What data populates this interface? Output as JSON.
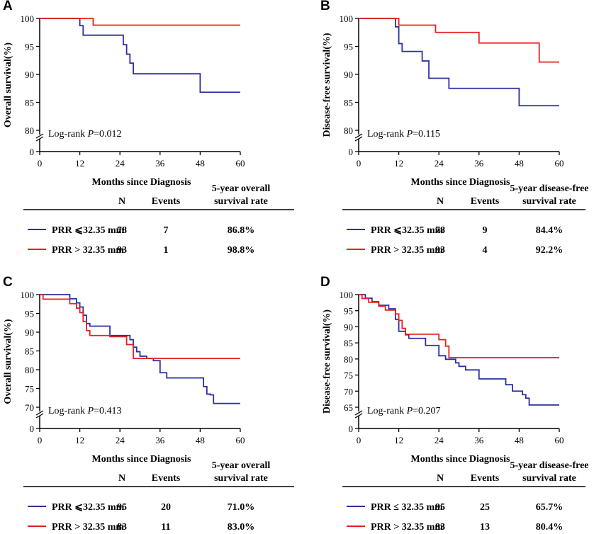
{
  "colors": {
    "blue": "#2b2fa3",
    "red": "#e8201e",
    "black": "#000000"
  },
  "xlabel": "Months since Diagnosis",
  "table_headers": {
    "n": "N",
    "events": "Events",
    "os_rate_line1": "5-year overall",
    "os_rate_line2": "survival rate",
    "dfs_rate_line1": "5-year disease-free",
    "dfs_rate_line2": "survival rate"
  },
  "chart_data": [
    {
      "panel": "A",
      "type": "line",
      "step": true,
      "ylabel": "Overall survival(%)",
      "xlabel": "Months since Diagnosis",
      "xticks": [
        0,
        12,
        24,
        36,
        48,
        60
      ],
      "yticks": [
        80,
        85,
        90,
        95,
        100
      ],
      "ylim": [
        80,
        100
      ],
      "y_axis_break": true,
      "annotation": {
        "prefix": "Log-rank ",
        "p": "P",
        "value": "=0.012"
      },
      "series": [
        {
          "name": "PRR ≤ 32.35 mm",
          "color": "blue",
          "x": [
            0,
            12,
            13,
            20,
            25,
            26,
            27,
            28,
            48,
            60
          ],
          "y": [
            100,
            98.7,
            97,
            97,
            95.3,
            93.6,
            92,
            90.1,
            86.8,
            86.8
          ]
        },
        {
          "name": "PRR > 32.35 mm",
          "color": "red",
          "x": [
            0,
            16,
            60
          ],
          "y": [
            100,
            98.8,
            98.8
          ]
        }
      ],
      "table": [
        {
          "label": "PRR ⩽32.35 mm",
          "n": "78",
          "events": "7",
          "rate": "86.8%",
          "color": "blue"
        },
        {
          "label": "PRR > 32.35 mm",
          "n": "93",
          "events": "1",
          "rate": "98.8%",
          "color": "red"
        }
      ]
    },
    {
      "panel": "B",
      "type": "line",
      "step": true,
      "ylabel": "Disease-free survival(%)",
      "xlabel": "Months since Diagnosis",
      "xticks": [
        0,
        12,
        24,
        36,
        48,
        60
      ],
      "yticks": [
        80,
        85,
        90,
        95,
        100
      ],
      "ylim": [
        80,
        100
      ],
      "y_axis_break": true,
      "annotation": {
        "prefix": "Log-rank ",
        "p": "P",
        "value": "=0.115"
      },
      "series": [
        {
          "name": "PRR ≤ 32.35 mm",
          "color": "blue",
          "x": [
            0,
            11,
            12,
            13,
            19,
            21,
            27,
            48,
            60
          ],
          "y": [
            100,
            98.5,
            95.5,
            94.1,
            92.4,
            89.3,
            87.5,
            84.4,
            84.4
          ]
        },
        {
          "name": "PRR > 32.35 mm",
          "color": "red",
          "x": [
            0,
            12,
            23,
            36,
            54,
            60
          ],
          "y": [
            100,
            98.8,
            97.5,
            95.6,
            92.2,
            92.2
          ]
        }
      ],
      "table": [
        {
          "label": "PRR ⩽32.35 mm",
          "n": "78",
          "events": "9",
          "rate": "84.4%",
          "color": "blue"
        },
        {
          "label": "PRR > 32.35 mm",
          "n": "93",
          "events": "4",
          "rate": "92.2%",
          "color": "red"
        }
      ]
    },
    {
      "panel": "C",
      "type": "line",
      "step": true,
      "ylabel": "Overall survival(%)",
      "xlabel": "Months since Diagnosis",
      "xticks": [
        0,
        12,
        24,
        36,
        48,
        60
      ],
      "yticks": [
        70,
        75,
        80,
        85,
        90,
        95,
        100
      ],
      "ylim": [
        70,
        100
      ],
      "y_axis_break": true,
      "annotation": {
        "prefix": "Log-rank ",
        "p": "P",
        "value": "=0.413"
      },
      "series": [
        {
          "name": "PRR ≤ 32.35 mm",
          "color": "blue",
          "x": [
            0,
            9,
            11,
            12,
            13,
            14,
            15,
            21,
            27,
            28,
            29,
            30,
            32,
            34,
            36,
            38,
            49,
            50,
            51,
            52,
            60
          ],
          "y": [
            100,
            98.9,
            97.8,
            96.7,
            94.5,
            92.3,
            91.6,
            89.1,
            88,
            86,
            84.8,
            83.6,
            83,
            82.4,
            79.2,
            77.8,
            75.5,
            73.5,
            73.3,
            71,
            71
          ]
        },
        {
          "name": "PRR > 32.35 mm",
          "color": "red",
          "x": [
            0,
            1,
            9,
            11,
            12,
            13,
            14,
            15,
            21,
            26,
            28,
            60
          ],
          "y": [
            100,
            98.8,
            97.6,
            96.4,
            95.2,
            92.8,
            90.4,
            89.1,
            88.8,
            86.7,
            83,
            83
          ]
        }
      ],
      "table": [
        {
          "label": "PRR ⩽32.35 mm",
          "n": "95",
          "events": "20",
          "rate": "71.0%",
          "color": "blue"
        },
        {
          "label": "PRR > 32.35 mm",
          "n": "83",
          "events": "11",
          "rate": "83.0%",
          "color": "red"
        }
      ]
    },
    {
      "panel": "D",
      "type": "line",
      "step": true,
      "ylabel": "Disease-free survival(%)",
      "xlabel": "Months since Diagnosis",
      "xticks": [
        0,
        12,
        24,
        36,
        48,
        60
      ],
      "yticks": [
        65,
        70,
        75,
        80,
        85,
        90,
        95,
        100
      ],
      "ylim": [
        65,
        100
      ],
      "y_axis_break": true,
      "annotation": {
        "prefix": "Log-rank ",
        "p": "P",
        "value": "=0.207"
      },
      "series": [
        {
          "name": "PRR ≤ 32.35 mm",
          "color": "blue",
          "x": [
            0,
            2,
            4,
            6,
            9,
            11,
            12,
            14,
            15,
            20,
            24,
            26,
            29,
            30,
            32,
            36,
            44,
            46,
            49,
            50,
            51,
            60
          ],
          "y": [
            100,
            98.9,
            97.8,
            96.7,
            95.6,
            92.3,
            88.6,
            87.5,
            86.4,
            84.2,
            81,
            79.9,
            78.8,
            77.7,
            76.6,
            73.8,
            72,
            70,
            68.9,
            67.8,
            65.7,
            65.7
          ]
        },
        {
          "name": "PRR > 32.35 mm",
          "color": "red",
          "x": [
            0,
            1,
            3,
            6,
            8,
            11,
            12,
            13,
            14,
            24,
            26,
            27,
            60
          ],
          "y": [
            100,
            98.8,
            97.6,
            96.4,
            95.2,
            94,
            92,
            89.5,
            87.7,
            86,
            84,
            80.4,
            80.4
          ]
        }
      ],
      "table": [
        {
          "label": "PRR ≤ 32.35 mm",
          "n": "95",
          "events": "25",
          "rate": "65.7%",
          "color": "blue"
        },
        {
          "label": "PRR > 32.35 mm",
          "n": "83",
          "events": "13",
          "rate": "80.4%",
          "color": "red"
        }
      ]
    }
  ]
}
